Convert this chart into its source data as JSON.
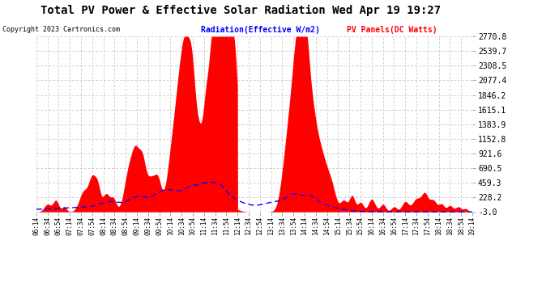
{
  "title": "Total PV Power & Effective Solar Radiation Wed Apr 19 19:27",
  "copyright": "Copyright 2023 Cartronics.com",
  "legend_radiation": "Radiation(Effective W/m2)",
  "legend_pv": "PV Panels(DC Watts)",
  "ylabel_values": [
    2770.8,
    2539.7,
    2308.5,
    2077.4,
    1846.2,
    1615.1,
    1383.9,
    1152.8,
    921.6,
    690.5,
    459.3,
    228.2,
    -3.0
  ],
  "ymin": -3.0,
  "ymax": 2770.8,
  "x_tick_labels": [
    "06:14",
    "06:34",
    "06:54",
    "07:14",
    "07:34",
    "07:54",
    "08:14",
    "08:34",
    "08:54",
    "09:14",
    "09:34",
    "09:54",
    "10:14",
    "10:34",
    "10:54",
    "11:14",
    "11:34",
    "11:54",
    "12:14",
    "12:34",
    "12:54",
    "13:14",
    "13:34",
    "13:54",
    "14:14",
    "14:34",
    "14:54",
    "15:14",
    "15:34",
    "15:54",
    "16:14",
    "16:34",
    "16:54",
    "17:14",
    "17:34",
    "17:54",
    "18:14",
    "18:34",
    "18:54",
    "19:14"
  ],
  "bg_color": "#ffffff",
  "grid_color": "#bbbbbb",
  "radiation_color": "#0000ff",
  "pv_color": "#ff0000",
  "title_color": "#000000",
  "copyright_color": "#000000",
  "legend_radiation_color": "#0000ff",
  "legend_pv_color": "#ff0000"
}
